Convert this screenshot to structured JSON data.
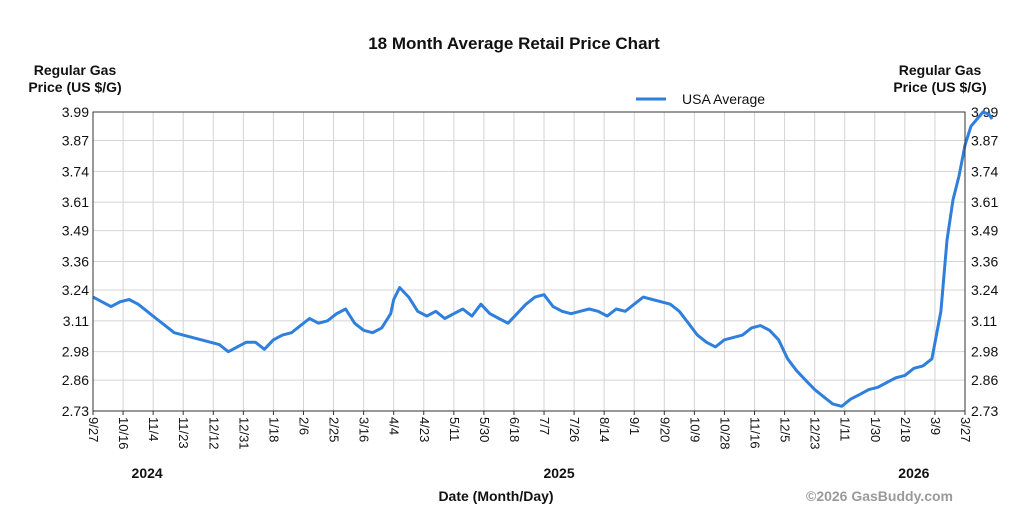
{
  "chart_data": {
    "type": "line",
    "title": "18 Month Average Retail Price Chart",
    "ylabel_left": "Regular Gas\nPrice (US $/G)",
    "ylabel_right": "Regular Gas\nPrice (US $/G)",
    "xlabel": "Date (Month/Day)",
    "credit": "©2026 GasBuddy.com",
    "ylim": [
      2.73,
      3.99
    ],
    "y_ticks": [
      "3.99",
      "3.87",
      "3.74",
      "3.61",
      "3.49",
      "3.36",
      "3.24",
      "3.11",
      "2.98",
      "2.86",
      "2.73"
    ],
    "x_ticks": [
      "9/27",
      "10/16",
      "11/4",
      "11/23",
      "12/12",
      "12/31",
      "1/18",
      "2/6",
      "2/25",
      "3/16",
      "4/4",
      "4/23",
      "5/11",
      "5/30",
      "6/18",
      "7/7",
      "7/26",
      "8/14",
      "9/1",
      "9/20",
      "10/9",
      "10/28",
      "11/16",
      "12/5",
      "12/23",
      "1/11",
      "1/30",
      "2/18",
      "3/9",
      "3/27"
    ],
    "years": [
      {
        "label": "2024",
        "tick_index": 1.8
      },
      {
        "label": "2025",
        "tick_index": 15.5
      },
      {
        "label": "2026",
        "tick_index": 27.3
      }
    ],
    "grid": true,
    "legend": {
      "position": "top-right",
      "entries": [
        "USA Average"
      ]
    },
    "series": [
      {
        "name": "USA Average",
        "color": "#2f7fdc",
        "x": [
          0,
          0.3,
          0.6,
          0.9,
          1.2,
          1.5,
          1.8,
          2.1,
          2.4,
          2.7,
          3.0,
          3.3,
          3.6,
          3.9,
          4.2,
          4.5,
          4.8,
          5.1,
          5.4,
          5.7,
          6.0,
          6.3,
          6.6,
          6.9,
          7.2,
          7.5,
          7.8,
          8.1,
          8.4,
          8.7,
          9.0,
          9.3,
          9.6,
          9.9,
          10.0,
          10.2,
          10.5,
          10.8,
          11.1,
          11.4,
          11.7,
          12.0,
          12.3,
          12.6,
          12.9,
          13.2,
          13.5,
          13.8,
          14.1,
          14.4,
          14.7,
          15.0,
          15.3,
          15.6,
          15.9,
          16.2,
          16.5,
          16.8,
          17.1,
          17.4,
          17.7,
          18.0,
          18.3,
          18.6,
          18.9,
          19.2,
          19.5,
          19.8,
          20.1,
          20.4,
          20.7,
          21.0,
          21.3,
          21.6,
          21.9,
          22.2,
          22.5,
          22.8,
          23.1,
          23.4,
          23.7,
          24.0,
          24.3,
          24.6,
          24.9,
          25.2,
          25.5,
          25.8,
          26.1,
          26.4,
          26.7,
          27.0,
          27.3,
          27.6,
          27.9,
          28.2,
          28.4,
          28.6,
          28.8,
          29.0,
          29.2,
          29.4,
          29.6,
          29.8,
          29.9
        ],
        "values": [
          3.21,
          3.19,
          3.17,
          3.19,
          3.2,
          3.18,
          3.15,
          3.12,
          3.09,
          3.06,
          3.05,
          3.04,
          3.03,
          3.02,
          3.01,
          2.98,
          3.0,
          3.02,
          3.02,
          2.99,
          3.03,
          3.05,
          3.06,
          3.09,
          3.12,
          3.1,
          3.11,
          3.14,
          3.16,
          3.1,
          3.07,
          3.06,
          3.08,
          3.14,
          3.2,
          3.25,
          3.21,
          3.15,
          3.13,
          3.15,
          3.12,
          3.14,
          3.16,
          3.13,
          3.18,
          3.14,
          3.12,
          3.1,
          3.14,
          3.18,
          3.21,
          3.22,
          3.17,
          3.15,
          3.14,
          3.15,
          3.16,
          3.15,
          3.13,
          3.16,
          3.15,
          3.18,
          3.21,
          3.2,
          3.19,
          3.18,
          3.15,
          3.1,
          3.05,
          3.02,
          3.0,
          3.03,
          3.04,
          3.05,
          3.08,
          3.09,
          3.07,
          3.03,
          2.95,
          2.9,
          2.86,
          2.82,
          2.79,
          2.76,
          2.75,
          2.78,
          2.8,
          2.82,
          2.83,
          2.85,
          2.87,
          2.88,
          2.91,
          2.92,
          2.95,
          3.15,
          3.45,
          3.62,
          3.72,
          3.85,
          3.93,
          3.96,
          3.99,
          3.98,
          3.96
        ]
      }
    ]
  }
}
